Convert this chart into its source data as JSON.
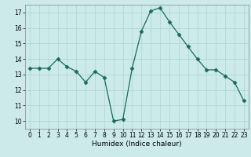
{
  "x": [
    0,
    1,
    2,
    3,
    4,
    5,
    6,
    7,
    8,
    9,
    10,
    11,
    12,
    13,
    14,
    15,
    16,
    17,
    18,
    19,
    20,
    21,
    22,
    23
  ],
  "y": [
    13.4,
    13.4,
    13.4,
    14.0,
    13.5,
    13.2,
    12.5,
    13.2,
    12.8,
    10.0,
    10.1,
    13.4,
    15.8,
    17.1,
    17.3,
    16.4,
    15.6,
    14.8,
    14.0,
    13.3,
    13.3,
    12.9,
    12.5,
    11.3
  ],
  "line_color": "#1a6b5a",
  "marker": "D",
  "marker_size": 2.5,
  "bg_color": "#cceaea",
  "grid_color": "#aad4d4",
  "xlabel": "Humidex (Indice chaleur)",
  "xlim": [
    -0.5,
    23.5
  ],
  "ylim": [
    9.5,
    17.5
  ],
  "yticks": [
    10,
    11,
    12,
    13,
    14,
    15,
    16,
    17
  ],
  "xticks": [
    0,
    1,
    2,
    3,
    4,
    5,
    6,
    7,
    8,
    9,
    10,
    11,
    12,
    13,
    14,
    15,
    16,
    17,
    18,
    19,
    20,
    21,
    22,
    23
  ],
  "tick_fontsize": 5.5,
  "xlabel_fontsize": 6.5
}
